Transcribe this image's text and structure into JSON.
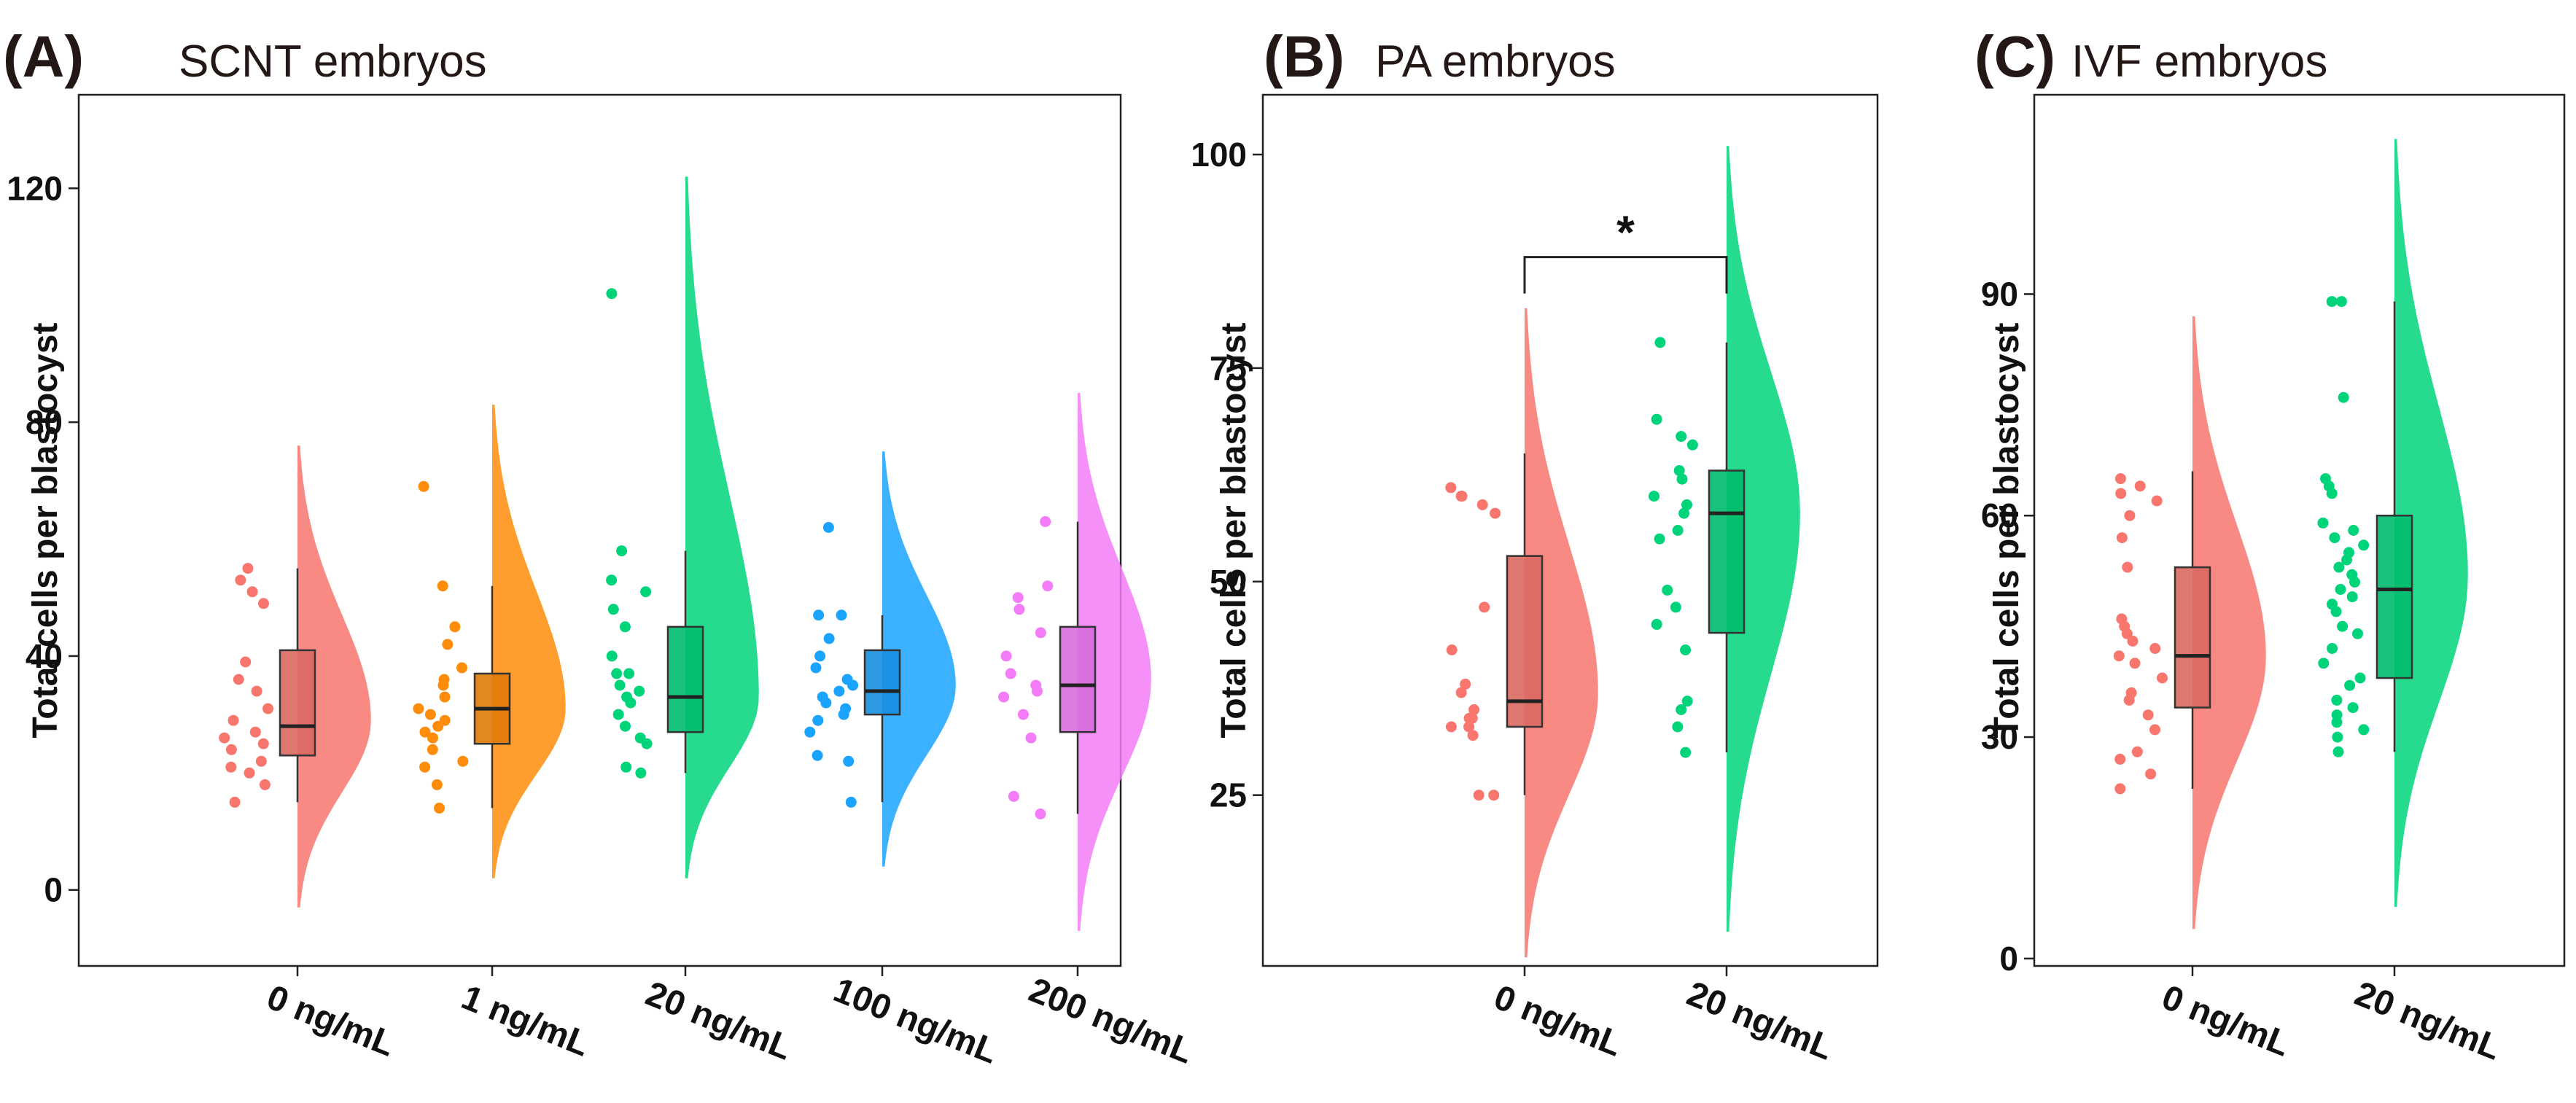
{
  "chart_data": [
    {
      "panel": "(A)",
      "title": "SCNT embryos",
      "type": "raincloud",
      "ylabel": "Total cells per blastocyst",
      "xlabel": "",
      "ylim": [
        -13,
        136
      ],
      "yticks": [
        0,
        40,
        80,
        120
      ],
      "categories": [
        "0 ng/mL",
        "1 ng/mL",
        "20 ng/mL",
        "100 ng/mL",
        "200 ng/mL"
      ],
      "colors": [
        "#f8766d",
        "#ff8c0a",
        "#00d47a",
        "#1aa3ff",
        "#f47cf8"
      ],
      "box": [
        {
          "min": 15,
          "q1": 23,
          "median": 28,
          "q3": 41,
          "max": 55
        },
        {
          "min": 14,
          "q1": 25,
          "median": 31,
          "q3": 37,
          "max": 52
        },
        {
          "min": 20,
          "q1": 27,
          "median": 33,
          "q3": 45,
          "max": 58
        },
        {
          "min": 15,
          "q1": 30,
          "median": 34,
          "q3": 41,
          "max": 47
        },
        {
          "min": 13,
          "q1": 27,
          "median": 35,
          "q3": 45,
          "max": 63
        }
      ],
      "density_range": [
        [
          -3,
          76
        ],
        [
          2,
          83
        ],
        [
          2,
          122
        ],
        [
          4,
          75
        ],
        [
          -7,
          85
        ]
      ],
      "density_peak": [
        29,
        31,
        33,
        35,
        36
      ],
      "points": [
        [
          15,
          18,
          20,
          21,
          22,
          24,
          25,
          26,
          27,
          29,
          31,
          34,
          36,
          39,
          49,
          51,
          53,
          55
        ],
        [
          14,
          18,
          21,
          22,
          24,
          26,
          27,
          28,
          29,
          30,
          31,
          33,
          35,
          36,
          38,
          42,
          45,
          52,
          69
        ],
        [
          20,
          21,
          25,
          26,
          28,
          30,
          32,
          33,
          34,
          35,
          37,
          37,
          40,
          45,
          48,
          51,
          53,
          58,
          102
        ],
        [
          15,
          22,
          23,
          27,
          29,
          30,
          31,
          32,
          33,
          34,
          35,
          36,
          38,
          40,
          43,
          47,
          47,
          62
        ],
        [
          13,
          16,
          26,
          30,
          33,
          34,
          35,
          37,
          40,
          44,
          48,
          50,
          52,
          63
        ]
      ]
    },
    {
      "panel": "(B)",
      "title": "PA embryos",
      "type": "raincloud",
      "ylabel": "Total cells per blastocyst",
      "xlabel": "",
      "ylim": [
        5,
        107
      ],
      "yticks": [
        25,
        50,
        75,
        100
      ],
      "categories": [
        "0 ng/mL",
        "20 ng/mL"
      ],
      "colors": [
        "#f8766d",
        "#00d47a"
      ],
      "box": [
        {
          "min": 25,
          "q1": 33,
          "median": 36,
          "q3": 53,
          "max": 65
        },
        {
          "min": 30,
          "q1": 44,
          "median": 58,
          "q3": 63,
          "max": 78
        }
      ],
      "density_range": [
        [
          6,
          82
        ],
        [
          9,
          101
        ]
      ],
      "density_peak": [
        37,
        58
      ],
      "points": [
        [
          25,
          25,
          32,
          33,
          33,
          34,
          34,
          35,
          37,
          38,
          42,
          47,
          58,
          59,
          60,
          60,
          61
        ],
        [
          30,
          33,
          35,
          36,
          42,
          45,
          47,
          49,
          55,
          56,
          58,
          59,
          60,
          62,
          63,
          66,
          67,
          69,
          78
        ]
      ],
      "annotation": {
        "label": "*",
        "between": [
          "0 ng/mL",
          "20 ng/mL"
        ],
        "y": 88
      }
    },
    {
      "panel": "(C)",
      "title": "IVF embryos",
      "type": "raincloud",
      "ylabel": "Total cells per blastocyst",
      "xlabel": "",
      "ylim": [
        -1,
        117
      ],
      "yticks": [
        0,
        30,
        60,
        90
      ],
      "categories": [
        "0 ng/mL",
        "20 ng/mL"
      ],
      "colors": [
        "#f8766d",
        "#00d47a"
      ],
      "box": [
        {
          "min": 23,
          "q1": 34,
          "median": 41,
          "q3": 53,
          "max": 66
        },
        {
          "min": 28,
          "q1": 38,
          "median": 50,
          "q3": 60,
          "max": 89
        }
      ],
      "density_range": [
        [
          4,
          87
        ],
        [
          7,
          111
        ]
      ],
      "density_peak": [
        41,
        52
      ],
      "points": [
        [
          23,
          25,
          27,
          28,
          31,
          33,
          35,
          36,
          38,
          40,
          41,
          42,
          43,
          44,
          45,
          46,
          53,
          57,
          60,
          62,
          63,
          64,
          65
        ],
        [
          28,
          30,
          31,
          32,
          33,
          34,
          35,
          37,
          38,
          40,
          42,
          44,
          45,
          47,
          48,
          49,
          50,
          51,
          52,
          53,
          54,
          55,
          56,
          57,
          58,
          59,
          63,
          64,
          65,
          76,
          89,
          89
        ]
      ]
    }
  ]
}
